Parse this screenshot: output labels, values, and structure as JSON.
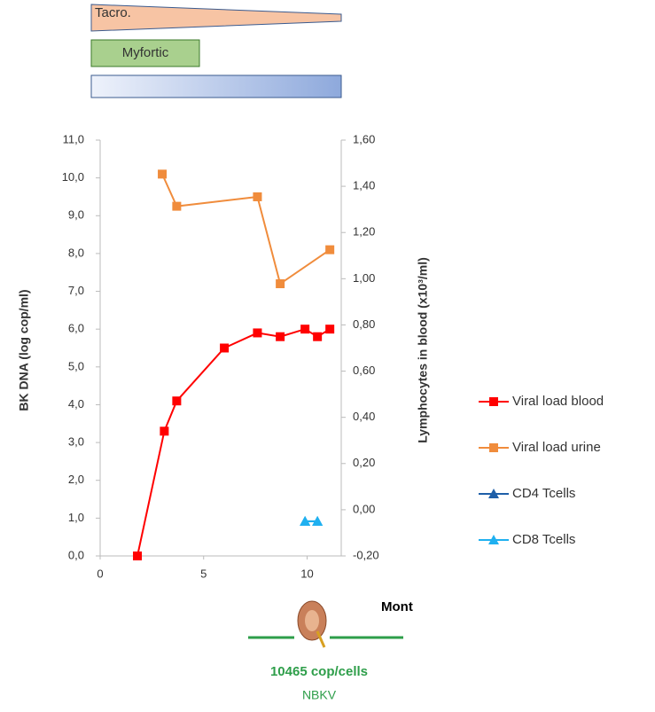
{
  "treatments": {
    "tacro": "Tacro.",
    "myfortic": "Myfortic"
  },
  "chart_data": {
    "type": "line",
    "ylabel": "BK DNA (log cop/ml)",
    "y2label": "Lymphocytes in blood  (x10³/ml)",
    "xlim": [
      0,
      11.65
    ],
    "xticks": [
      0,
      5,
      10
    ],
    "ylim": [
      0,
      11
    ],
    "yticks": [
      {
        "value": 0,
        "label": "0,0"
      },
      {
        "value": 1,
        "label": "1,0"
      },
      {
        "value": 2,
        "label": "2,0"
      },
      {
        "value": 3,
        "label": "3,0"
      },
      {
        "value": 4,
        "label": "4,0"
      },
      {
        "value": 5,
        "label": "5,0"
      },
      {
        "value": 6,
        "label": "6,0"
      },
      {
        "value": 7,
        "label": "7,0"
      },
      {
        "value": 8,
        "label": "8,0"
      },
      {
        "value": 9,
        "label": "9,0"
      },
      {
        "value": 10,
        "label": "10,0"
      },
      {
        "value": 11,
        "label": "11,0"
      }
    ],
    "y2lim": [
      -0.2,
      1.6
    ],
    "y2ticks": [
      {
        "value": -0.2,
        "label": "-0,20"
      },
      {
        "value": 0,
        "label": "0,00"
      },
      {
        "value": 0.2,
        "label": "0,20"
      },
      {
        "value": 0.4,
        "label": "0,40"
      },
      {
        "value": 0.6,
        "label": "0,60"
      },
      {
        "value": 0.8,
        "label": "0,80"
      },
      {
        "value": 1.0,
        "label": "1,00"
      },
      {
        "value": 1.2,
        "label": "1,20"
      },
      {
        "value": 1.4,
        "label": "1,40"
      },
      {
        "value": 1.6,
        "label": "1,60"
      }
    ],
    "series": [
      {
        "name": "Viral load blood",
        "color": "#ff0000",
        "marker": "square",
        "x": [
          1.8,
          3.1,
          3.7,
          6.0,
          7.6,
          8.7,
          9.9,
          10.5,
          11.1
        ],
        "values": [
          0,
          3.3,
          4.1,
          5.5,
          5.9,
          5.8,
          6.0,
          5.8,
          6.0
        ]
      },
      {
        "name": "Viral load urine",
        "color": "#f08c3c",
        "marker": "square",
        "x": [
          3.0,
          3.7,
          7.6,
          8.7,
          11.1
        ],
        "values": [
          10.1,
          9.25,
          9.5,
          7.2,
          8.1
        ]
      },
      {
        "name": "CD4  Tcells",
        "color": "#1f5fa8",
        "marker": "triangle",
        "axis": "y2",
        "x": [
          9.9,
          10.5
        ],
        "values": [
          -0.05,
          -0.05
        ]
      },
      {
        "name": "CD8 Tcells",
        "color": "#1fb0f0",
        "marker": "triangle",
        "axis": "y2",
        "x": [
          9.9,
          10.5
        ],
        "values": [
          -0.05,
          -0.05
        ]
      }
    ]
  },
  "footer": {
    "axis_word": "Mont",
    "copies": "10465 cop/cells",
    "virus": "NBKV"
  }
}
